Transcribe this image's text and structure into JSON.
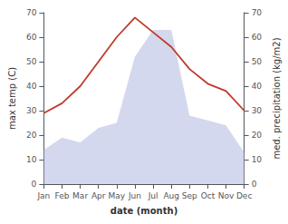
{
  "chart_data": {
    "type": "line",
    "categories": [
      "Jan",
      "Feb",
      "Mar",
      "Apr",
      "May",
      "Jun",
      "Jul",
      "Aug",
      "Sep",
      "Oct",
      "Nov",
      "Dec"
    ],
    "xlabel": "date (month)",
    "ylabel": "max temp (C)",
    "y2label": "med. precipitation (kg/m2)",
    "ylim": [
      0,
      70
    ],
    "yticks": [
      0,
      10,
      20,
      30,
      40,
      50,
      60,
      70
    ],
    "y2lim": [
      0,
      70
    ],
    "y2ticks": [
      0,
      10,
      20,
      30,
      40,
      50,
      60,
      70
    ],
    "grid": false,
    "series": [
      {
        "type": "line",
        "color": "#c0392b",
        "values": [
          29,
          33,
          40,
          50,
          60,
          68,
          62,
          56,
          47,
          41,
          38,
          30
        ]
      },
      {
        "type": "area",
        "color": "#b0b8e0",
        "axis": "y2",
        "values": [
          14,
          19,
          17,
          23,
          25,
          52,
          63,
          63,
          28,
          26,
          24,
          13
        ]
      }
    ]
  }
}
